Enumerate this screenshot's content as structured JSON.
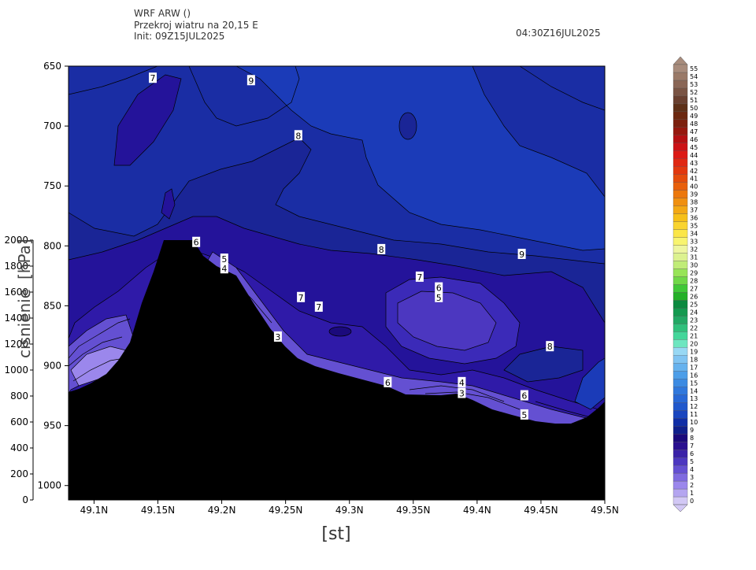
{
  "header": {
    "line1": "WRF ARW ()",
    "line2": "Przekroj wiatru na 20,15 E",
    "line3": "Init: 09Z15JUL2025",
    "valid_time": "04:30Z16JUL2025"
  },
  "chart_data": {
    "type": "heatmap",
    "title": "",
    "xlabel": "[st]",
    "ylabel_right": "[hPa]",
    "ylabel_left": "cisnienie",
    "x_ticks": [
      "49.1N",
      "49.15N",
      "49.2N",
      "49.25N",
      "49.3N",
      "49.35N",
      "49.4N",
      "49.45N",
      "49.5N"
    ],
    "x_tick_values": [
      49.1,
      49.15,
      49.2,
      49.25,
      49.3,
      49.35,
      49.4,
      49.45,
      49.5
    ],
    "xlim": [
      49.08,
      49.5
    ],
    "pressure_ticks": [
      650,
      700,
      750,
      800,
      850,
      900,
      950,
      1000
    ],
    "pressure_lim": [
      650,
      1012
    ],
    "height_ticks": [
      0,
      200,
      400,
      600,
      800,
      1000,
      1200,
      1400,
      1600,
      1800,
      2000
    ],
    "height_tick_labels": [
      "0",
      "200",
      "400",
      "600",
      "800",
      "1000",
      "1200",
      "1400",
      "1600",
      "1800",
      "2000"
    ],
    "height_lim": [
      0,
      2000
    ],
    "colorbar_levels": [
      0,
      1,
      2,
      3,
      4,
      5,
      6,
      7,
      8,
      9,
      10,
      11,
      12,
      13,
      14,
      15,
      16,
      17,
      18,
      19,
      20,
      21,
      22,
      23,
      24,
      25,
      26,
      27,
      28,
      29,
      30,
      31,
      32,
      33,
      34,
      35,
      36,
      37,
      38,
      39,
      40,
      41,
      42,
      43,
      44,
      45,
      46,
      47,
      48,
      49,
      50,
      51,
      52,
      53,
      54,
      55
    ],
    "colorbar_colors": [
      "#d2c8f5",
      "#b4a5f0",
      "#9b87ec",
      "#7f6be0",
      "#6450d2",
      "#4c37c0",
      "#3a22a8",
      "#2a1090",
      "#1b0a7c",
      "#10208c",
      "#102ea6",
      "#1a46bf",
      "#2058cc",
      "#2868d6",
      "#3078dc",
      "#3c8be2",
      "#4d9ee8",
      "#66b2ee",
      "#80c4f2",
      "#98d8f4",
      "#6ee6c0",
      "#44d69a",
      "#30c07c",
      "#22a864",
      "#149a50",
      "#0c8a40",
      "#24b028",
      "#40c838",
      "#70d848",
      "#98e458",
      "#c0ec78",
      "#dcf290",
      "#eef6a0",
      "#f8f470",
      "#fbe648",
      "#f9d430",
      "#f6c018",
      "#f3a814",
      "#f09010",
      "#ec780c",
      "#e8600c",
      "#e44c0c",
      "#e2380e",
      "#e02812",
      "#dc1a16",
      "#cc1216",
      "#b41012",
      "#96180e",
      "#7c200e",
      "#6c2810",
      "#5e3018",
      "#6a4030",
      "#7a5444",
      "#8a6656",
      "#9a7a68",
      "#a88c7c"
    ],
    "surface_note": "terrain",
    "fill_levels": [
      {
        "level": 0,
        "color": "#9b87ec"
      },
      {
        "level": 1,
        "color": "#7f6be0"
      },
      {
        "level": 2,
        "color": "#6450d2"
      },
      {
        "level": 3,
        "color": "#4c37c0"
      },
      {
        "level": 4,
        "color": "#3a22a8"
      },
      {
        "level": 5,
        "color": "#2a1090"
      },
      {
        "level": 6,
        "color": "#1b0a7c"
      },
      {
        "level": 7,
        "color": "#10208c"
      },
      {
        "level": 8,
        "color": "#102ea6"
      }
    ],
    "contour_labels": [
      {
        "x": 49.146,
        "p": 660,
        "v": "7"
      },
      {
        "x": 49.223,
        "p": 662,
        "v": "9"
      },
      {
        "x": 49.26,
        "p": 708,
        "v": "8"
      },
      {
        "x": 49.18,
        "p": 797,
        "v": "6"
      },
      {
        "x": 49.202,
        "p": 811,
        "v": "5"
      },
      {
        "x": 49.202,
        "p": 819,
        "v": "4"
      },
      {
        "x": 49.244,
        "p": 876,
        "v": "3"
      },
      {
        "x": 49.262,
        "p": 843,
        "v": "7"
      },
      {
        "x": 49.276,
        "p": 851,
        "v": "7"
      },
      {
        "x": 49.325,
        "p": 803,
        "v": "8"
      },
      {
        "x": 49.355,
        "p": 826,
        "v": "7"
      },
      {
        "x": 49.37,
        "p": 835,
        "v": "6"
      },
      {
        "x": 49.37,
        "p": 843,
        "v": "5"
      },
      {
        "x": 49.435,
        "p": 807,
        "v": "9"
      },
      {
        "x": 49.457,
        "p": 884,
        "v": "8"
      },
      {
        "x": 49.33,
        "p": 914,
        "v": "6"
      },
      {
        "x": 49.388,
        "p": 914,
        "v": "4"
      },
      {
        "x": 49.388,
        "p": 923,
        "v": "3"
      },
      {
        "x": 49.437,
        "p": 925,
        "v": "6"
      },
      {
        "x": 49.437,
        "p": 941,
        "v": "5"
      }
    ]
  }
}
